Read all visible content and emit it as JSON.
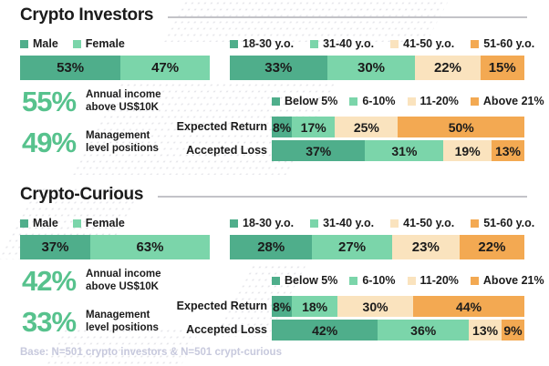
{
  "colors": {
    "segment_palette": [
      "#4FAE8B",
      "#7BD5AA",
      "#FAE3BE",
      "#F3A952"
    ],
    "stat_green": "#57C28D",
    "text_dark": "#1B1B1B",
    "footer_muted": "#C7C9DD",
    "divider_gray": "#C3C3C8"
  },
  "footer": {
    "base_note": "Base: N=501 crypto investors & N=501 crypt-curious"
  },
  "sections": [
    {
      "title": "Crypto Investors",
      "gender": {
        "legend": [
          "Male",
          "Female"
        ],
        "values": [
          53,
          47
        ]
      },
      "age": {
        "legend": [
          "18-30 y.o.",
          "31-40 y.o.",
          "41-50 y.o.",
          "51-60 y.o."
        ],
        "values": [
          33,
          30,
          22,
          15
        ]
      },
      "stats": [
        {
          "value": "55%",
          "label": "Annual income\nabove US$10K"
        },
        {
          "value": "49%",
          "label": "Management\nlevel positions"
        }
      ],
      "risk": {
        "legend": [
          "Below 5%",
          "6-10%",
          "11-20%",
          "Above 21%"
        ],
        "rows": [
          {
            "label": "Expected Return",
            "values": [
              8,
              17,
              25,
              50
            ]
          },
          {
            "label": "Accepted Loss",
            "values": [
              37,
              31,
              19,
              13
            ]
          }
        ]
      }
    },
    {
      "title": "Crypto-Curious",
      "gender": {
        "legend": [
          "Male",
          "Female"
        ],
        "values": [
          37,
          63
        ]
      },
      "age": {
        "legend": [
          "18-30 y.o.",
          "31-40 y.o.",
          "41-50 y.o.",
          "51-60 y.o."
        ],
        "values": [
          28,
          27,
          23,
          22
        ]
      },
      "stats": [
        {
          "value": "42%",
          "label": "Annual income\nabove US$10K"
        },
        {
          "value": "33%",
          "label": "Management\nlevel positions"
        }
      ],
      "risk": {
        "legend": [
          "Below 5%",
          "6-10%",
          "11-20%",
          "Above 21%"
        ],
        "rows": [
          {
            "label": "Expected Return",
            "values": [
              8,
              18,
              30,
              44
            ]
          },
          {
            "label": "Accepted Loss",
            "values": [
              42,
              36,
              13,
              9
            ]
          }
        ]
      }
    }
  ],
  "chart_data": [
    {
      "type": "bar",
      "title": "Crypto Investors - Gender",
      "categories": [
        "Male",
        "Female"
      ],
      "values": [
        53,
        47
      ],
      "unit": "%",
      "layout": "horizontal-stacked"
    },
    {
      "type": "bar",
      "title": "Crypto Investors - Age",
      "categories": [
        "18-30 y.o.",
        "31-40 y.o.",
        "41-50 y.o.",
        "51-60 y.o."
      ],
      "values": [
        33,
        30,
        22,
        15
      ],
      "unit": "%",
      "layout": "horizontal-stacked"
    },
    {
      "type": "bar",
      "title": "Crypto Investors - Risk",
      "categories": [
        "Below 5%",
        "6-10%",
        "11-20%",
        "Above 21%"
      ],
      "series": [
        {
          "name": "Expected Return",
          "values": [
            8,
            17,
            25,
            50
          ]
        },
        {
          "name": "Accepted Loss",
          "values": [
            37,
            31,
            19,
            13
          ]
        }
      ],
      "unit": "%",
      "layout": "horizontal-stacked",
      "legend_position": "top"
    },
    {
      "type": "bar",
      "title": "Crypto-Curious - Gender",
      "categories": [
        "Male",
        "Female"
      ],
      "values": [
        37,
        63
      ],
      "unit": "%",
      "layout": "horizontal-stacked"
    },
    {
      "type": "bar",
      "title": "Crypto-Curious - Age",
      "categories": [
        "18-30 y.o.",
        "31-40 y.o.",
        "41-50 y.o.",
        "51-60 y.o."
      ],
      "values": [
        28,
        27,
        23,
        22
      ],
      "unit": "%",
      "layout": "horizontal-stacked"
    },
    {
      "type": "bar",
      "title": "Crypto-Curious - Risk",
      "categories": [
        "Below 5%",
        "6-10%",
        "11-20%",
        "Above 21%"
      ],
      "series": [
        {
          "name": "Expected Return",
          "values": [
            8,
            18,
            30,
            44
          ]
        },
        {
          "name": "Accepted Loss",
          "values": [
            42,
            36,
            13,
            9
          ]
        }
      ],
      "unit": "%",
      "layout": "horizontal-stacked",
      "legend_position": "top"
    }
  ]
}
